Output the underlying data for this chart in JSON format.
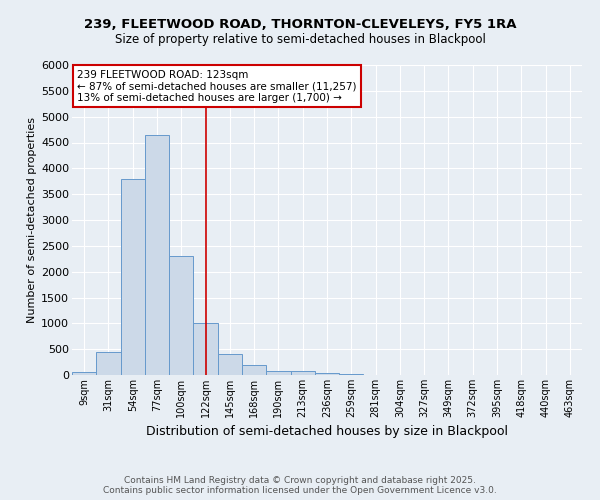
{
  "title1": "239, FLEETWOOD ROAD, THORNTON-CLEVELEYS, FY5 1RA",
  "title2": "Size of property relative to semi-detached houses in Blackpool",
  "xlabel": "Distribution of semi-detached houses by size in Blackpool",
  "ylabel": "Number of semi-detached properties",
  "bar_labels": [
    "9sqm",
    "31sqm",
    "54sqm",
    "77sqm",
    "100sqm",
    "122sqm",
    "145sqm",
    "168sqm",
    "190sqm",
    "213sqm",
    "236sqm",
    "259sqm",
    "281sqm",
    "304sqm",
    "327sqm",
    "349sqm",
    "372sqm",
    "395sqm",
    "418sqm",
    "440sqm",
    "463sqm"
  ],
  "bar_values": [
    50,
    450,
    3800,
    4650,
    2300,
    1000,
    400,
    200,
    80,
    70,
    30,
    10,
    0,
    0,
    0,
    0,
    0,
    0,
    0,
    0,
    0
  ],
  "bar_color": "#ccd9e8",
  "bar_edgecolor": "#6699cc",
  "property_line_idx": 5,
  "property_line_color": "#cc0000",
  "annotation_line1": "239 FLEETWOOD ROAD: 123sqm",
  "annotation_line2": "← 87% of semi-detached houses are smaller (11,257)",
  "annotation_line3": "13% of semi-detached houses are larger (1,700) →",
  "annotation_box_color": "#cc0000",
  "ylim": [
    0,
    6000
  ],
  "yticks": [
    0,
    500,
    1000,
    1500,
    2000,
    2500,
    3000,
    3500,
    4000,
    4500,
    5000,
    5500,
    6000
  ],
  "footer1": "Contains HM Land Registry data © Crown copyright and database right 2025.",
  "footer2": "Contains public sector information licensed under the Open Government Licence v3.0.",
  "bg_color": "#e8eef4",
  "grid_color": "#ffffff"
}
